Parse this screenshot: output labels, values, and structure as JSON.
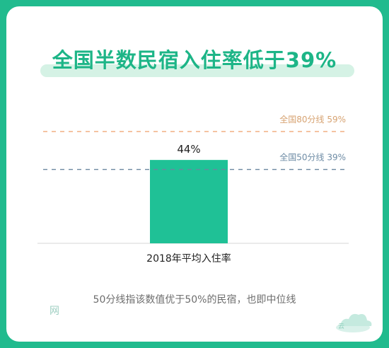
{
  "title": "全国半数民宿入住率低于39%",
  "footnote": "50分线指该数值优于50%的民宿，也即中位线",
  "watermark": {
    "text": "网",
    "icon": "cloud-icon"
  },
  "colors": {
    "frame": "#21bb8e",
    "bar": "#1fc196",
    "title": "#1db587",
    "line80": "#f0a878",
    "line50": "#6b88a0",
    "label80": "#d7a372",
    "label50": "#6e8ca5"
  },
  "chart_data": {
    "type": "bar",
    "categories": [
      "2018年平均入住率"
    ],
    "values": [
      44
    ],
    "data_labels": [
      "44%"
    ],
    "ylim": [
      0,
      70
    ],
    "grid": false,
    "reference_lines": [
      {
        "label": "全国80分线 59%",
        "value": 59
      },
      {
        "label": "全国50分线 39%",
        "value": 39
      }
    ]
  }
}
